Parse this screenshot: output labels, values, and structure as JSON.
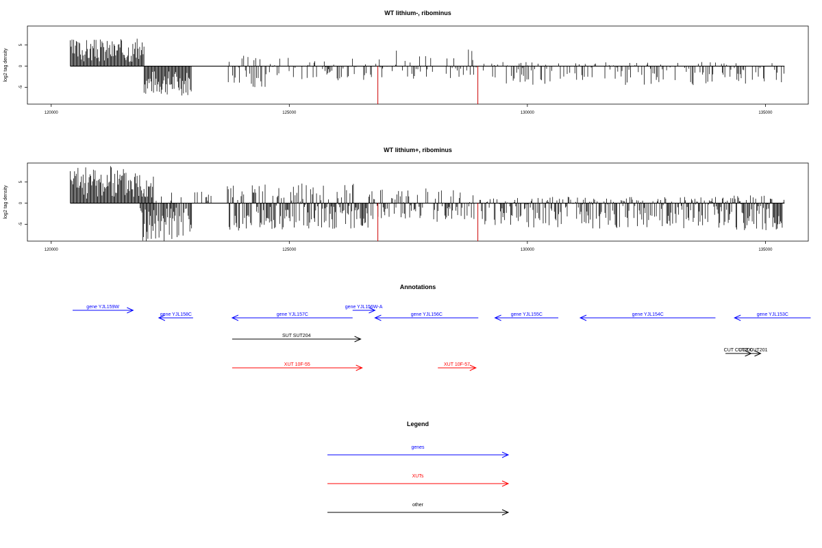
{
  "colors": {
    "gene": "#0000ff",
    "xut": "#ff0000",
    "other": "#000000",
    "marker": "#cc0000"
  },
  "chart_data": [
    {
      "type": "bar",
      "title": "WT lithium-, ribominus",
      "ylabel": "log2 tag density",
      "xlim": [
        119500,
        135900
      ],
      "ylim": [
        -9,
        9.5
      ],
      "xticks": [
        120000,
        125000,
        130000,
        135000
      ],
      "yticks": [
        -5,
        0,
        5
      ],
      "xtick_labels": [
        "120000",
        "125000",
        "130000",
        "135000"
      ],
      "ytick_labels": [
        "-5",
        "0",
        "5"
      ],
      "baseline_x": [
        120400,
        135400
      ],
      "markers": [
        {
          "x": 126860,
          "y": -9
        },
        {
          "x": 128960,
          "y": -9
        }
      ],
      "segments": [
        {
          "from": 120400,
          "to": 121950,
          "min": 1,
          "max": 6.5,
          "density": 1.0,
          "seed": 3
        },
        {
          "from": 121950,
          "to": 122950,
          "min": -7,
          "max": -1,
          "density": 1.0,
          "seed": 7
        },
        {
          "from": 123700,
          "to": 124600,
          "min": -5,
          "max": 3,
          "density": 0.55,
          "seed": 11
        },
        {
          "from": 124600,
          "to": 126800,
          "min": -3.5,
          "max": 2,
          "density": 0.35,
          "seed": 13
        },
        {
          "from": 126800,
          "to": 129000,
          "min": -3,
          "max": 4,
          "density": 0.35,
          "seed": 17
        },
        {
          "from": 129000,
          "to": 135400,
          "min": -4.5,
          "max": 1,
          "density": 0.4,
          "seed": 19
        }
      ]
    },
    {
      "type": "bar",
      "title": "WT lithium+, ribominus",
      "ylabel": "log2 tag density",
      "xlim": [
        119500,
        135900
      ],
      "ylim": [
        -9,
        9.5
      ],
      "xticks": [
        120000,
        125000,
        130000,
        135000
      ],
      "yticks": [
        -5,
        0,
        5
      ],
      "xtick_labels": [
        "120000",
        "125000",
        "130000",
        "135000"
      ],
      "ytick_labels": [
        "-5",
        "0",
        "5"
      ],
      "baseline_x": [
        120400,
        135400
      ],
      "markers": [
        {
          "x": 126860,
          "y": -9
        },
        {
          "x": 128960,
          "y": -9
        }
      ],
      "segments": [
        {
          "from": 120400,
          "to": 122150,
          "min": 1,
          "max": 8.8,
          "density": 1.0,
          "seed": 23
        },
        {
          "from": 121850,
          "to": 122950,
          "min": -9,
          "max": -1,
          "density": 0.9,
          "seed": 29
        },
        {
          "from": 122150,
          "to": 123500,
          "min": 0.5,
          "max": 3,
          "density": 0.2,
          "seed": 31
        },
        {
          "from": 123700,
          "to": 126700,
          "min": -6.5,
          "max": 4.8,
          "density": 1.0,
          "seed": 37
        },
        {
          "from": 126700,
          "to": 129000,
          "min": -4.5,
          "max": 3.5,
          "density": 0.7,
          "seed": 41
        },
        {
          "from": 129000,
          "to": 134200,
          "min": -6,
          "max": 1.5,
          "density": 0.8,
          "seed": 43
        },
        {
          "from": 134200,
          "to": 135400,
          "min": -6.5,
          "max": 2,
          "density": 1.0,
          "seed": 47
        }
      ]
    }
  ],
  "annotations": {
    "title": "Annotations",
    "features": [
      {
        "label": "gene YJL159W",
        "start": 120450,
        "end": 121720,
        "strand": "+",
        "kind": "gene",
        "row": 0
      },
      {
        "label": "gene YJL158C",
        "start": 122260,
        "end": 122980,
        "strand": "-",
        "kind": "gene",
        "row": 1
      },
      {
        "label": "gene YJL157C",
        "start": 123800,
        "end": 126330,
        "strand": "-",
        "kind": "gene",
        "row": 1
      },
      {
        "label": "gene YJL156W-A",
        "start": 126330,
        "end": 126800,
        "strand": "+",
        "kind": "gene",
        "row": 0
      },
      {
        "label": "gene YJL156C",
        "start": 126800,
        "end": 128970,
        "strand": "-",
        "kind": "gene",
        "row": 1
      },
      {
        "label": "gene YJL155C",
        "start": 129320,
        "end": 130650,
        "strand": "-",
        "kind": "gene",
        "row": 1
      },
      {
        "label": "gene YJL154C",
        "start": 131110,
        "end": 133950,
        "strand": "-",
        "kind": "gene",
        "row": 1
      },
      {
        "label": "gene YJL153C",
        "start": 134350,
        "end": 135950,
        "strand": "-",
        "kind": "gene",
        "row": 1
      },
      {
        "label": "SUT SUT204",
        "start": 123800,
        "end": 126500,
        "strand": "+",
        "kind": "other",
        "row": 2
      },
      {
        "label": "CUT CUT200",
        "start": 134160,
        "end": 134700,
        "strand": "+",
        "kind": "other",
        "row": 3
      },
      {
        "label": "CUT CUT201",
        "start": 134580,
        "end": 134900,
        "strand": "+",
        "kind": "other",
        "row": 3
      },
      {
        "label": "XUT 10F-55",
        "start": 123800,
        "end": 126530,
        "strand": "+",
        "kind": "xut",
        "row": 4
      },
      {
        "label": "XUT 10F-57",
        "start": 128120,
        "end": 128920,
        "strand": "+",
        "kind": "xut",
        "row": 4
      }
    ]
  },
  "legend": {
    "title": "Legend",
    "items": [
      {
        "label": "genes",
        "kind": "gene"
      },
      {
        "label": "XUTs",
        "kind": "xut"
      },
      {
        "label": "other",
        "kind": "other"
      }
    ]
  }
}
